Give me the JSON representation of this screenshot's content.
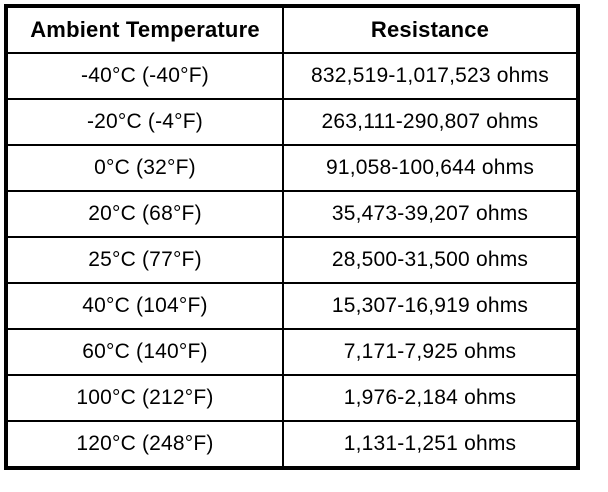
{
  "page": {
    "background_color": "#ffffff",
    "text_color": "#000000",
    "border_color": "#000000"
  },
  "table": {
    "columns": [
      "Ambient Temperature",
      "Resistance"
    ],
    "rows": [
      [
        "-40°C (-40°F)",
        "832,519-1,017,523 ohms"
      ],
      [
        "-20°C (-4°F)",
        "263,111-290,807 ohms"
      ],
      [
        "0°C (32°F)",
        "91,058-100,644 ohms"
      ],
      [
        "20°C (68°F)",
        "35,473-39,207 ohms"
      ],
      [
        "25°C (77°F)",
        "28,500-31,500 ohms"
      ],
      [
        "40°C (104°F)",
        "15,307-16,919 ohms"
      ],
      [
        "60°C (140°F)",
        "7,171-7,925 ohms"
      ],
      [
        "100°C (212°F)",
        "1,976-2,184 ohms"
      ],
      [
        "120°C (248°F)",
        "1,131-1,251 ohms"
      ]
    ]
  }
}
